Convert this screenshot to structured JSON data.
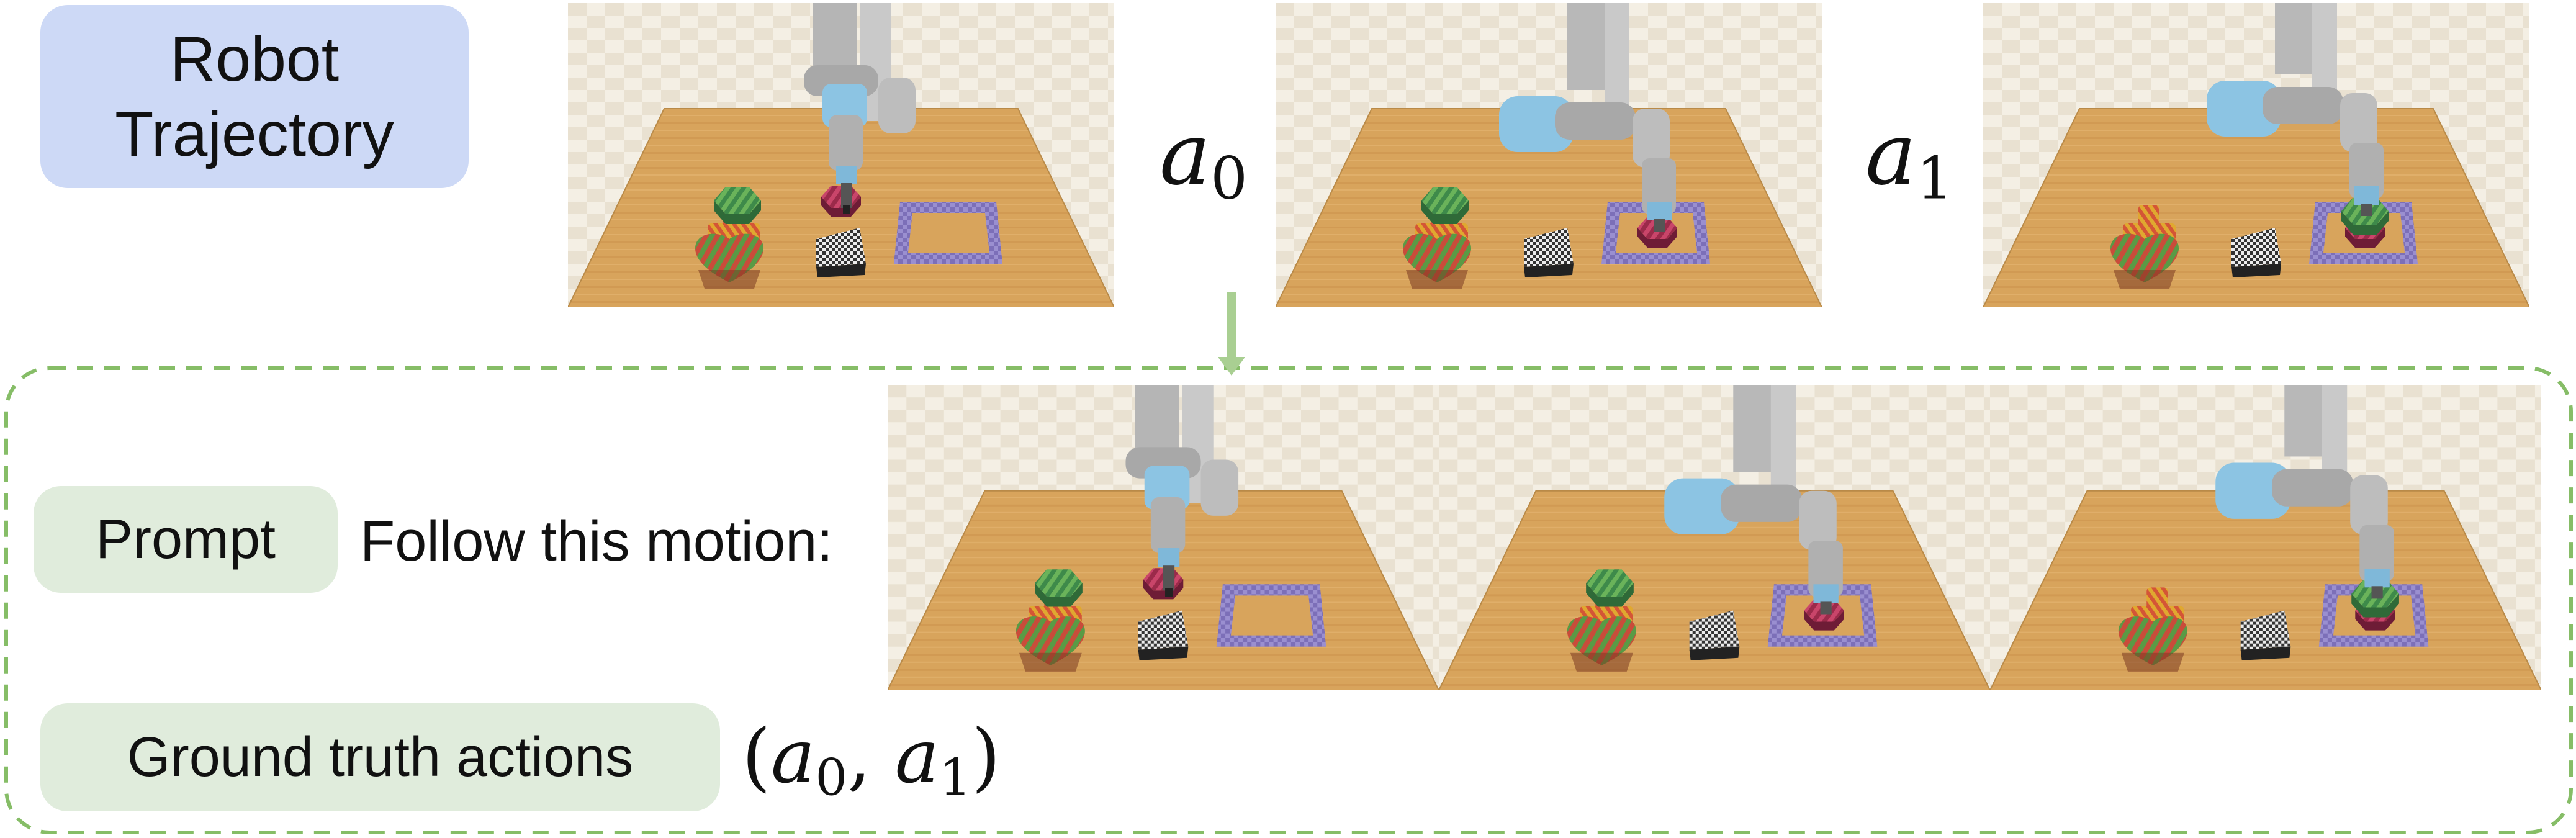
{
  "robot_trajectory": {
    "line1": "Robot",
    "line2": "Trajectory"
  },
  "actions": {
    "a0_letter": "a",
    "a0_index": "0",
    "a1_letter": "a",
    "a1_index": "1"
  },
  "prompt": {
    "label": "Prompt",
    "text": "Follow this motion:"
  },
  "ground_truth": {
    "label": "Ground truth actions",
    "open": "(",
    "a0_letter": "a",
    "a0_index": "0",
    "sep": ",",
    "a1_letter": "a",
    "a1_index": "1",
    "close": ")"
  },
  "colors": {
    "robot_pill": "#cdd9f6",
    "prompt_pill": "#e0ecdc",
    "dashed_border": "#86bd67",
    "arrow": "#a9cf92",
    "table_wood": "#d6a25a",
    "target_square": "#7c6fb8",
    "robot_blue": "#8cc4e3"
  },
  "icons": [
    "robot-arm-icon",
    "hexagon-block-icon",
    "cross-block-icon",
    "heart-block-icon",
    "triangle-block-icon",
    "target-square-icon"
  ],
  "frames": [
    {
      "id": "top-1",
      "state": "start"
    },
    {
      "id": "top-2",
      "state": "after-a0"
    },
    {
      "id": "top-3",
      "state": "after-a1"
    },
    {
      "id": "bottom-1",
      "state": "start"
    },
    {
      "id": "bottom-2",
      "state": "after-a0"
    },
    {
      "id": "bottom-3",
      "state": "after-a1"
    }
  ]
}
